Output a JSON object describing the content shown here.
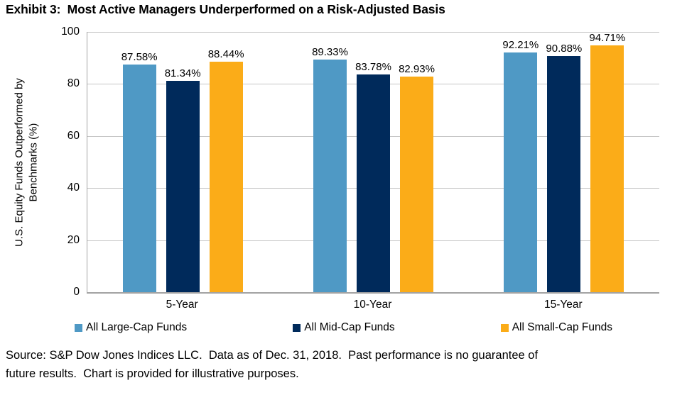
{
  "title": "Exhibit 3:  Most Active Managers Underperformed on a Risk-Adjusted Basis",
  "source": {
    "line1": "Source: S&P Dow Jones Indices LLC.  Data as of Dec. 31, 2018.  Past performance is no guarantee of",
    "line2": "future results.  Chart is provided for illustrative purposes."
  },
  "chart_data": {
    "type": "bar",
    "categories": [
      "5-Year",
      "10-Year",
      "15-Year"
    ],
    "series": [
      {
        "name": "All Large-Cap Funds",
        "color": "#4f99c5",
        "values": [
          87.58,
          89.33,
          92.21
        ]
      },
      {
        "name": "All Mid-Cap Funds",
        "color": "#002a5b",
        "values": [
          81.34,
          83.78,
          90.88
        ]
      },
      {
        "name": "All Small-Cap Funds",
        "color": "#fbac18",
        "values": [
          88.44,
          82.93,
          94.71
        ]
      }
    ],
    "data_labels": [
      [
        "87.58%",
        "89.33%",
        "92.21%"
      ],
      [
        "81.34%",
        "83.78%",
        "90.88%"
      ],
      [
        "88.44%",
        "82.93%",
        "94.71%"
      ]
    ],
    "title": "",
    "xlabel": "",
    "ylabel": "U.S. Equity Funds Outperformed by Benchmarks (%)",
    "ylabel_lines": [
      "U.S. Equity Funds Outperformed by",
      "Benchmarks (%)"
    ],
    "ylim": [
      0,
      100
    ],
    "yticks": [
      0,
      20,
      40,
      60,
      80,
      100
    ],
    "grid": "horizontal",
    "legend_position": "bottom",
    "gridline_color": "#c6c6c6",
    "axis_color": "#a3a3a3"
  }
}
